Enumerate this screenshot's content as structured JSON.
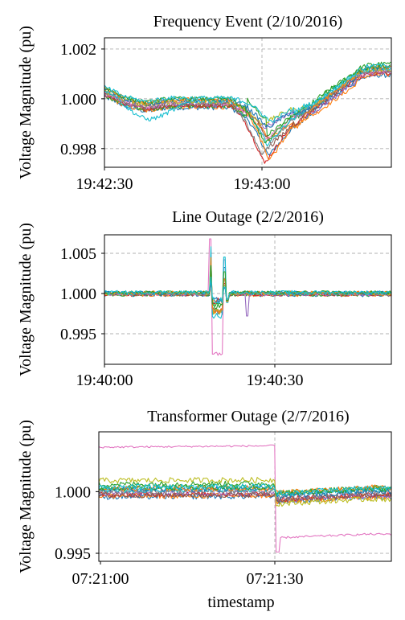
{
  "chart_data": [
    {
      "type": "line",
      "title": "Frequency Event (2/10/2016)",
      "ylabel": "Voltage Magnitude (pu)",
      "xlabel": "",
      "x_tick_labels": [
        "19:42:30",
        "19:43:00"
      ],
      "y_tick_labels": [
        "0.998",
        "1.000",
        "1.002"
      ],
      "y_ticks": [
        0.998,
        1.0,
        1.002
      ],
      "ylim": [
        0.99725,
        1.00245
      ],
      "xlim_seconds_from_first_tick": [
        0,
        52
      ],
      "event_marker_seconds": 30,
      "grid": true,
      "num_series": 14,
      "series_colors": [
        "#1f77b4",
        "#ff7f0e",
        "#2ca02c",
        "#d62728",
        "#9467bd",
        "#8c564b",
        "#e377c2",
        "#7f7f7f",
        "#bcbd22",
        "#17becf",
        "#1f77b4",
        "#ff7f0e",
        "#2ca02c",
        "#17becf"
      ],
      "shape": {
        "x": [
          0,
          4,
          8,
          12,
          16,
          20,
          24,
          27,
          29,
          31,
          33,
          35,
          38,
          41,
          44,
          47,
          50,
          52
        ],
        "y": [
          1.0003,
          0.9999,
          0.9997,
          0.99985,
          0.99985,
          0.99985,
          0.99985,
          0.9994,
          0.9987,
          0.9979,
          0.9984,
          0.9989,
          0.9995,
          0.99995,
          1.0004,
          1.00085,
          1.0011,
          1.00115
        ]
      }
    },
    {
      "type": "line",
      "title": "Line Outage (2/2/2016)",
      "ylabel": "Voltage Magnitude (pu)",
      "xlabel": "",
      "x_tick_labels": [
        "19:40:00",
        "19:40:30"
      ],
      "y_tick_labels": [
        "0.995",
        "1.000",
        "1.005"
      ],
      "y_ticks": [
        0.995,
        1.0,
        1.005
      ],
      "ylim": [
        0.9912,
        1.0073
      ],
      "xlim_seconds_from_first_tick": [
        0,
        48
      ],
      "event_marker_seconds": 30,
      "grid": true,
      "num_series": 14,
      "series_colors": [
        "#1f77b4",
        "#ff7f0e",
        "#2ca02c",
        "#d62728",
        "#9467bd",
        "#8c564b",
        "#e377c2",
        "#7f7f7f",
        "#bcbd22",
        "#17becf",
        "#1f77b4",
        "#ff7f0e",
        "#2ca02c",
        "#17becf"
      ]
    },
    {
      "type": "line",
      "title": "Transformer Outage (2/7/2016)",
      "ylabel": "Voltage Magnitude (pu)",
      "xlabel": "timestamp",
      "x_tick_labels": [
        "07:21:00",
        "07:21:30"
      ],
      "y_tick_labels": [
        "0.995",
        "1.000"
      ],
      "y_ticks": [
        0.995,
        1.0
      ],
      "ylim": [
        0.99435,
        1.00485
      ],
      "xlim_seconds_from_first_tick": [
        0,
        48
      ],
      "event_marker_seconds": 30,
      "grid": true,
      "num_series": 14,
      "series_colors": [
        "#1f77b4",
        "#ff7f0e",
        "#2ca02c",
        "#d62728",
        "#9467bd",
        "#8c564b",
        "#e377c2",
        "#7f7f7f",
        "#bcbd22",
        "#17becf",
        "#1f77b4",
        "#ff7f0e",
        "#2ca02c",
        "#17becf"
      ],
      "outlier_series": {
        "color": "#e377c2",
        "before_level": 1.0036,
        "after_level": 0.99625
      }
    }
  ]
}
